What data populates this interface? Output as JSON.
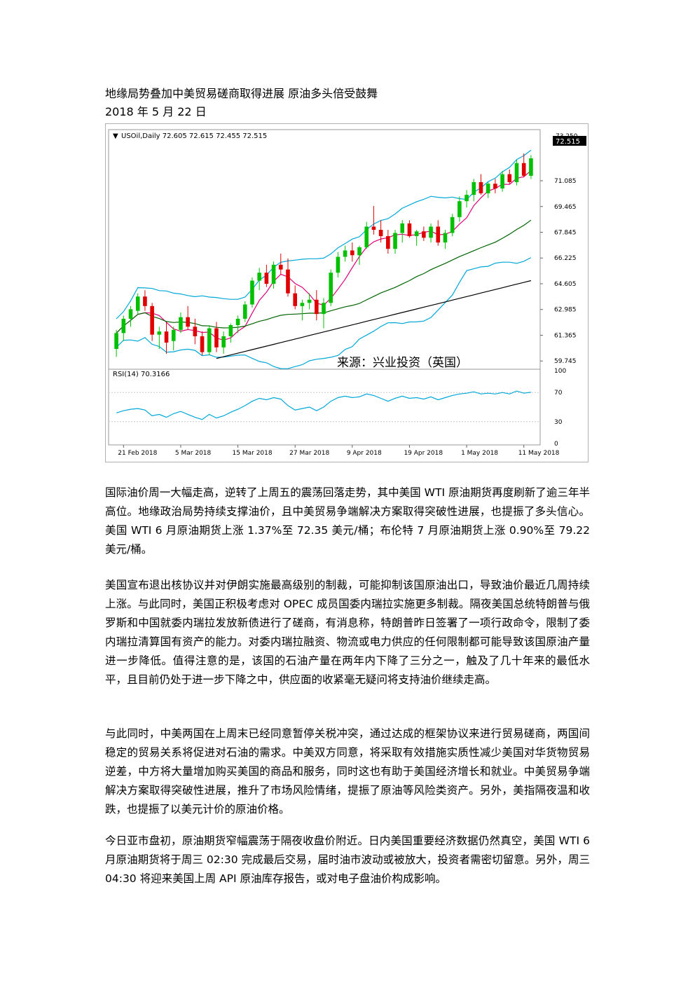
{
  "doc": {
    "title": "地缘局势叠加中美贸易磋商取得进展 原油多头倍受鼓舞",
    "date": "2018 年 5 月 22 日",
    "paragraphs": [
      "国际油价周一大幅走高，逆转了上周五的震荡回落走势，其中美国 WTI 原油期货再度刷新了逾三年半高位。地缘政治局势持续支撑油价，且中美贸易争端解决方案取得突破性进展，也提振了多头信心。美国 WTI 6 月原油期货上涨 1.37%至 72.35 美元/桶；布伦特 7 月原油期货上涨 0.90%至 79.22 美元/桶。",
      "美国宣布退出核协议并对伊朗实施最高级别的制裁，可能抑制该国原油出口，导致油价最近几周持续上涨。与此同时，美国正积极考虑对 OPEC 成员国委内瑞拉实施更多制裁。隔夜美国总统特朗普与俄罗斯和中国就委内瑞拉发放新债进行了磋商，有消息称，特朗普昨日签署了一项行政命令，限制了委内瑞拉清算国有资产的能力。对委内瑞拉融资、物流或电力供应的任何限制都可能导致该国原油产量进一步降低。值得注意的是，该国的石油产量在两年内下降了三分之一，触及了几十年来的最低水平，且目前仍处于进一步下降之中，供应面的收紧毫无疑问将支持油价继续走高。",
      "与此同时，中美两国在上周末已经同意暂停关税冲突，通过达成的框架协议来进行贸易磋商，两国间稳定的贸易关系将促进对石油的需求。中美双方同意，将采取有效措施实质性减少美国对华货物贸易逆差，中方将大量增加购买美国的商品和服务，同时这也有助于美国经济增长和就业。中美贸易争端解决方案取得突破性进展，推升了市场风险情绪，提振了原油等风险类资产。另外，美指隔夜温和收跌，也提振了以美元计价的原油价格。",
      "今日亚市盘初，原油期货窄幅震荡于隔夜收盘价附近。日内美国重要经济数据仍然真空，美国 WTI 6 月原油期货将于周三 02:30 完成最后交易，届时油市波动或被放大，投资者需密切留意。另外，周三 04:30 将迎来美国上周 API 原油库存报告，或对电子盘油价构成影响。"
    ]
  },
  "chart_data": {
    "type": "candlestick",
    "header": "USOil,Daily  72.605 72.615 72.455 72.515",
    "last_price_label": "72.515",
    "top_price_label": "73.250",
    "y_ticks": [
      "71.085",
      "69.465",
      "67.845",
      "66.225",
      "64.605",
      "62.985",
      "61.365",
      "59.745"
    ],
    "y_tick_values": [
      71.085,
      69.465,
      67.845,
      66.225,
      64.605,
      62.985,
      61.365,
      59.745
    ],
    "ylim": [
      59.4,
      73.6
    ],
    "x_ticks": [
      "21 Feb 2018",
      "5 Mar 2018",
      "15 Mar 2018",
      "27 Mar 2018",
      "9 Apr 2018",
      "19 Apr 2018",
      "1 May 2018",
      "11 May 2018"
    ],
    "x_tick_index": [
      1,
      9,
      17,
      25,
      33,
      41,
      49,
      57
    ],
    "watermark": "来源：兴业投资（英国）",
    "colors": {
      "up": "#00c000",
      "down": "#e00000",
      "bollinger": "#00a8d8",
      "ma_short": "#e0007a",
      "ma_mid": "#006400",
      "ma_long": "#000000",
      "rsi": "#00a8d8"
    },
    "candles": [
      [
        60.5,
        61.7,
        60.0,
        61.5
      ],
      [
        61.5,
        62.6,
        61.0,
        62.4
      ],
      [
        62.4,
        63.2,
        61.9,
        63.0
      ],
      [
        62.9,
        64.0,
        62.7,
        63.8
      ],
      [
        63.8,
        64.2,
        62.9,
        63.2
      ],
      [
        63.2,
        63.4,
        61.0,
        61.4
      ],
      [
        61.4,
        61.9,
        60.5,
        61.6
      ],
      [
        61.6,
        62.2,
        60.2,
        60.9
      ],
      [
        61.0,
        61.9,
        60.4,
        61.7
      ],
      [
        61.7,
        62.8,
        61.5,
        62.5
      ],
      [
        62.5,
        63.2,
        61.7,
        61.9
      ],
      [
        61.9,
        62.4,
        60.8,
        61.3
      ],
      [
        61.3,
        61.6,
        60.1,
        60.3
      ],
      [
        60.3,
        62.0,
        60.1,
        61.8
      ],
      [
        61.8,
        62.2,
        60.3,
        60.6
      ],
      [
        60.6,
        61.6,
        60.2,
        61.3
      ],
      [
        61.3,
        62.1,
        60.9,
        62.0
      ],
      [
        62.0,
        62.6,
        61.5,
        62.4
      ],
      [
        62.4,
        63.5,
        62.2,
        63.3
      ],
      [
        63.3,
        65.0,
        63.1,
        64.8
      ],
      [
        64.8,
        65.6,
        64.2,
        65.3
      ],
      [
        65.3,
        65.8,
        64.4,
        64.6
      ],
      [
        64.6,
        66.0,
        64.3,
        65.8
      ],
      [
        65.8,
        66.5,
        65.2,
        65.5
      ],
      [
        65.5,
        66.2,
        63.8,
        64.0
      ],
      [
        64.0,
        64.5,
        63.0,
        63.2
      ],
      [
        63.2,
        63.6,
        62.3,
        63.4
      ],
      [
        63.4,
        64.0,
        63.0,
        63.6
      ],
      [
        63.6,
        64.2,
        62.3,
        62.7
      ],
      [
        62.7,
        63.7,
        61.8,
        63.4
      ],
      [
        63.4,
        65.5,
        63.2,
        65.3
      ],
      [
        65.3,
        66.6,
        65.0,
        66.3
      ],
      [
        66.3,
        67.0,
        66.0,
        66.7
      ],
      [
        66.7,
        67.2,
        66.0,
        66.4
      ],
      [
        66.4,
        67.0,
        65.8,
        66.9
      ],
      [
        66.9,
        68.5,
        66.8,
        68.2
      ],
      [
        68.2,
        69.5,
        67.7,
        68.0
      ],
      [
        68.0,
        68.6,
        67.2,
        67.6
      ],
      [
        67.6,
        68.0,
        66.5,
        66.8
      ],
      [
        66.8,
        68.0,
        66.5,
        67.8
      ],
      [
        67.8,
        68.6,
        67.2,
        68.4
      ],
      [
        68.4,
        68.6,
        67.5,
        67.6
      ],
      [
        67.6,
        68.0,
        67.0,
        67.9
      ],
      [
        67.9,
        68.2,
        67.3,
        67.5
      ],
      [
        67.5,
        68.4,
        67.2,
        68.2
      ],
      [
        68.2,
        68.6,
        67.0,
        67.2
      ],
      [
        67.2,
        68.0,
        66.8,
        67.8
      ],
      [
        67.8,
        69.0,
        67.6,
        68.8
      ],
      [
        68.8,
        70.1,
        68.5,
        69.8
      ],
      [
        69.8,
        70.5,
        69.4,
        70.2
      ],
      [
        70.2,
        71.2,
        69.8,
        71.0
      ],
      [
        71.0,
        71.5,
        70.2,
        70.3
      ],
      [
        70.3,
        71.0,
        70.0,
        70.9
      ],
      [
        70.9,
        71.2,
        70.3,
        70.6
      ],
      [
        70.6,
        71.7,
        70.4,
        71.5
      ],
      [
        71.5,
        71.8,
        70.9,
        71.0
      ],
      [
        71.0,
        72.4,
        70.8,
        72.2
      ],
      [
        72.2,
        72.8,
        71.3,
        71.4
      ],
      [
        71.4,
        72.7,
        71.2,
        72.5
      ]
    ],
    "rsi": {
      "label": "RSI(14) 70.3166",
      "ticks": [
        "100",
        "70",
        "30",
        "0"
      ],
      "tick_values": [
        100,
        70,
        30,
        0
      ],
      "values": [
        42,
        45,
        47,
        48,
        46,
        38,
        40,
        36,
        41,
        44,
        40,
        36,
        33,
        40,
        35,
        38,
        43,
        47,
        52,
        58,
        62,
        60,
        63,
        61,
        52,
        46,
        48,
        50,
        45,
        50,
        58,
        63,
        65,
        63,
        64,
        68,
        66,
        62,
        58,
        62,
        65,
        62,
        63,
        61,
        64,
        60,
        63,
        66,
        68,
        69,
        71,
        68,
        69,
        68,
        70,
        68,
        72,
        69,
        70.3
      ]
    }
  }
}
